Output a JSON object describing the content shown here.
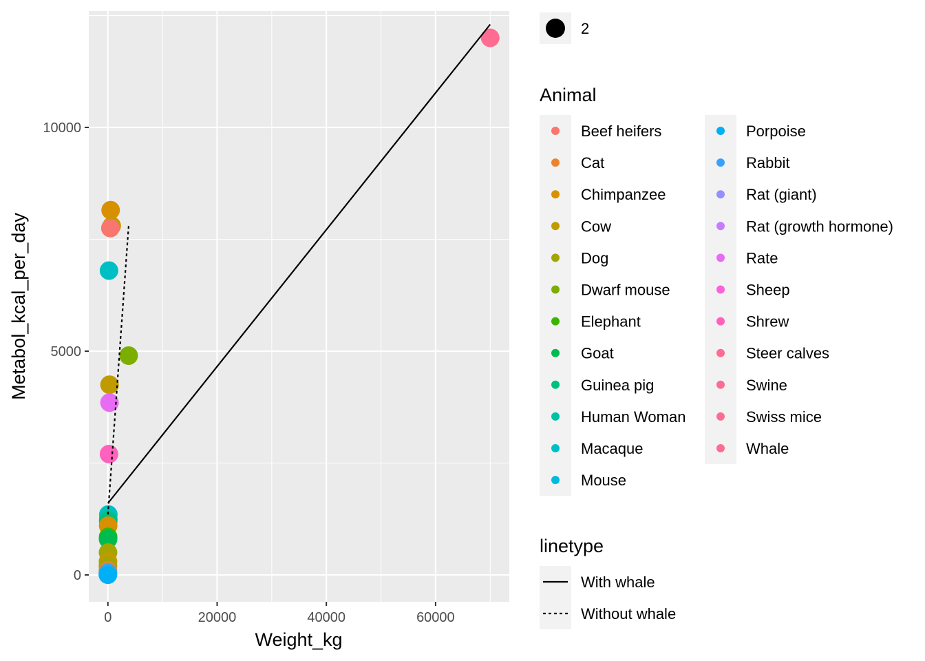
{
  "chart_data": {
    "type": "scatter",
    "xlabel": "Weight_kg",
    "ylabel": "Metabol_kcal_per_day",
    "xlim": [
      -3500,
      73500
    ],
    "ylim": [
      -600,
      12600
    ],
    "x_ticks": [
      0,
      20000,
      40000,
      60000
    ],
    "x_tick_labels": [
      "0",
      "20000",
      "40000",
      "60000"
    ],
    "y_ticks": [
      0,
      5000,
      10000
    ],
    "y_tick_labels": [
      "0",
      "5000",
      "10000"
    ],
    "grid": true,
    "legend_position": "right",
    "size_legend": {
      "title": "",
      "label": "2"
    },
    "color_legend": {
      "title": "Animal",
      "entries": [
        {
          "label": "Beef heifers",
          "color": "#F8766D"
        },
        {
          "label": "Cat",
          "color": "#EA8331"
        },
        {
          "label": "Chimpanzee",
          "color": "#D89000"
        },
        {
          "label": "Cow",
          "color": "#C09B00"
        },
        {
          "label": "Dog",
          "color": "#A3A500"
        },
        {
          "label": "Dwarf mouse",
          "color": "#7CAE00"
        },
        {
          "label": "Elephant",
          "color": "#39B600"
        },
        {
          "label": "Goat",
          "color": "#00BB4E"
        },
        {
          "label": "Guinea pig",
          "color": "#00BF7D"
        },
        {
          "label": "Human Woman",
          "color": "#00C1A3"
        },
        {
          "label": "Macaque",
          "color": "#00BFC4"
        },
        {
          "label": "Mouse",
          "color": "#00BAE0"
        },
        {
          "label": "Porpoise",
          "color": "#00B0F6"
        },
        {
          "label": "Rabbit",
          "color": "#35A2FF"
        },
        {
          "label": "Rat (giant)",
          "color": "#9590FF"
        },
        {
          "label": "Rat (growth hormone)",
          "color": "#C77CFF"
        },
        {
          "label": "Rate",
          "color": "#E76BF3"
        },
        {
          "label": "Sheep",
          "color": "#FA62DB"
        },
        {
          "label": "Shrew",
          "color": "#FF62BC"
        },
        {
          "label": "Steer calves",
          "color": "#FF6C91"
        },
        {
          "label": "Swine",
          "color": "#FF6C91"
        },
        {
          "label": "Swiss mice",
          "color": "#FF6C91"
        },
        {
          "label": "Whale",
          "color": "#FF6C91"
        }
      ]
    },
    "linetype_legend": {
      "title": "linetype",
      "entries": [
        {
          "label": "With whale",
          "dash": "solid"
        },
        {
          "label": "Without whale",
          "dash": "dotted"
        }
      ]
    },
    "points": [
      {
        "x": 70000,
        "y": 12000,
        "color": "#FF6C91"
      },
      {
        "x": 500,
        "y": 8150,
        "color": "#D89000"
      },
      {
        "x": 700,
        "y": 7800,
        "color": "#C09B00"
      },
      {
        "x": 450,
        "y": 7750,
        "color": "#F8766D"
      },
      {
        "x": 200,
        "y": 6800,
        "color": "#00BFC4"
      },
      {
        "x": 3800,
        "y": 4900,
        "color": "#7CAE00"
      },
      {
        "x": 300,
        "y": 4250,
        "color": "#C09B00"
      },
      {
        "x": 300,
        "y": 3850,
        "color": "#E76BF3"
      },
      {
        "x": 200,
        "y": 2700,
        "color": "#FF62BC"
      },
      {
        "x": 80,
        "y": 1350,
        "color": "#00BFC4"
      },
      {
        "x": 70,
        "y": 1250,
        "color": "#00C1A3"
      },
      {
        "x": 60,
        "y": 1200,
        "color": "#00BF7D"
      },
      {
        "x": 50,
        "y": 1100,
        "color": "#D89000"
      },
      {
        "x": 40,
        "y": 850,
        "color": "#39B600"
      },
      {
        "x": 30,
        "y": 800,
        "color": "#00BB4E"
      },
      {
        "x": 25,
        "y": 500,
        "color": "#A3A500"
      },
      {
        "x": 20,
        "y": 300,
        "color": "#C09B00"
      },
      {
        "x": 10,
        "y": 200,
        "color": "#A3A500"
      },
      {
        "x": 5,
        "y": 100,
        "color": "#EA8331"
      },
      {
        "x": 3,
        "y": 50,
        "color": "#35A2FF"
      },
      {
        "x": 1,
        "y": 20,
        "color": "#7CAE00"
      },
      {
        "x": 0.5,
        "y": 10,
        "color": "#9590FF"
      },
      {
        "x": 0.1,
        "y": 5,
        "color": "#00B0F6"
      }
    ],
    "lines": [
      {
        "name": "With whale",
        "dash": "solid",
        "x": [
          0,
          70000
        ],
        "y": [
          1600,
          12300
        ]
      },
      {
        "name": "Without whale",
        "dash": "dotted",
        "x": [
          0,
          3800
        ],
        "y": [
          1350,
          7800
        ]
      }
    ]
  }
}
